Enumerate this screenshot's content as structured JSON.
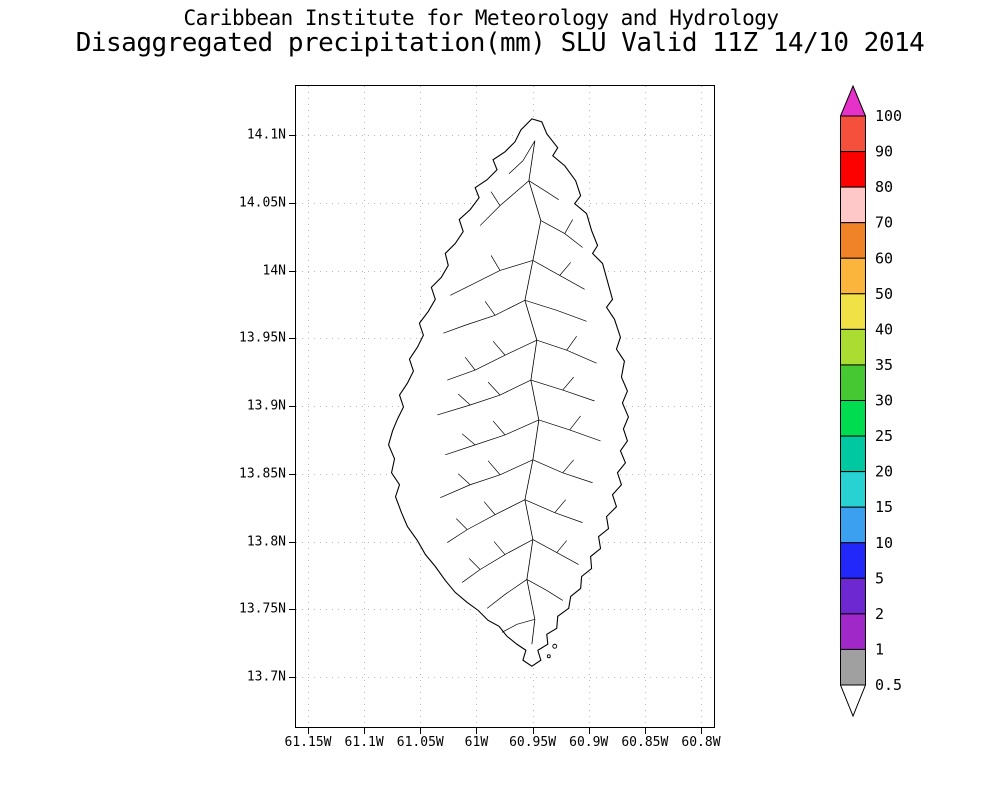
{
  "header": {
    "line1": "Caribbean Institute for Meteorology and Hydrology",
    "line2": "Disaggregated precipitation(mm) SLU Valid 11Z 14/10 2014"
  },
  "axes": {
    "lat_ticks": [
      "14.1N",
      "14.05N",
      "14N",
      "13.95N",
      "13.9N",
      "13.85N",
      "13.8N",
      "13.75N",
      "13.7N"
    ],
    "lon_ticks": [
      "61.15W",
      "61.1W",
      "61.05W",
      "61W",
      "60.95W",
      "60.9W",
      "60.85W",
      "60.8W"
    ]
  },
  "colorbar": {
    "levels": [
      "100",
      "90",
      "80",
      "70",
      "60",
      "50",
      "40",
      "35",
      "30",
      "25",
      "20",
      "15",
      "10",
      "5",
      "2",
      "1",
      "0.5"
    ],
    "colors": [
      "#f4503c",
      "#fd0000",
      "#ffc8c8",
      "#f08228",
      "#fbb43c",
      "#f0e146",
      "#aadc32",
      "#46c832",
      "#00dc50",
      "#00c8a0",
      "#28d2d2",
      "#3ca0f0",
      "#2328fa",
      "#6e28d2",
      "#a028c8",
      "#a0a0a0"
    ],
    "above_color": "#e632c8",
    "below_color": "#ffffff",
    "outline_color": "#000000"
  }
}
